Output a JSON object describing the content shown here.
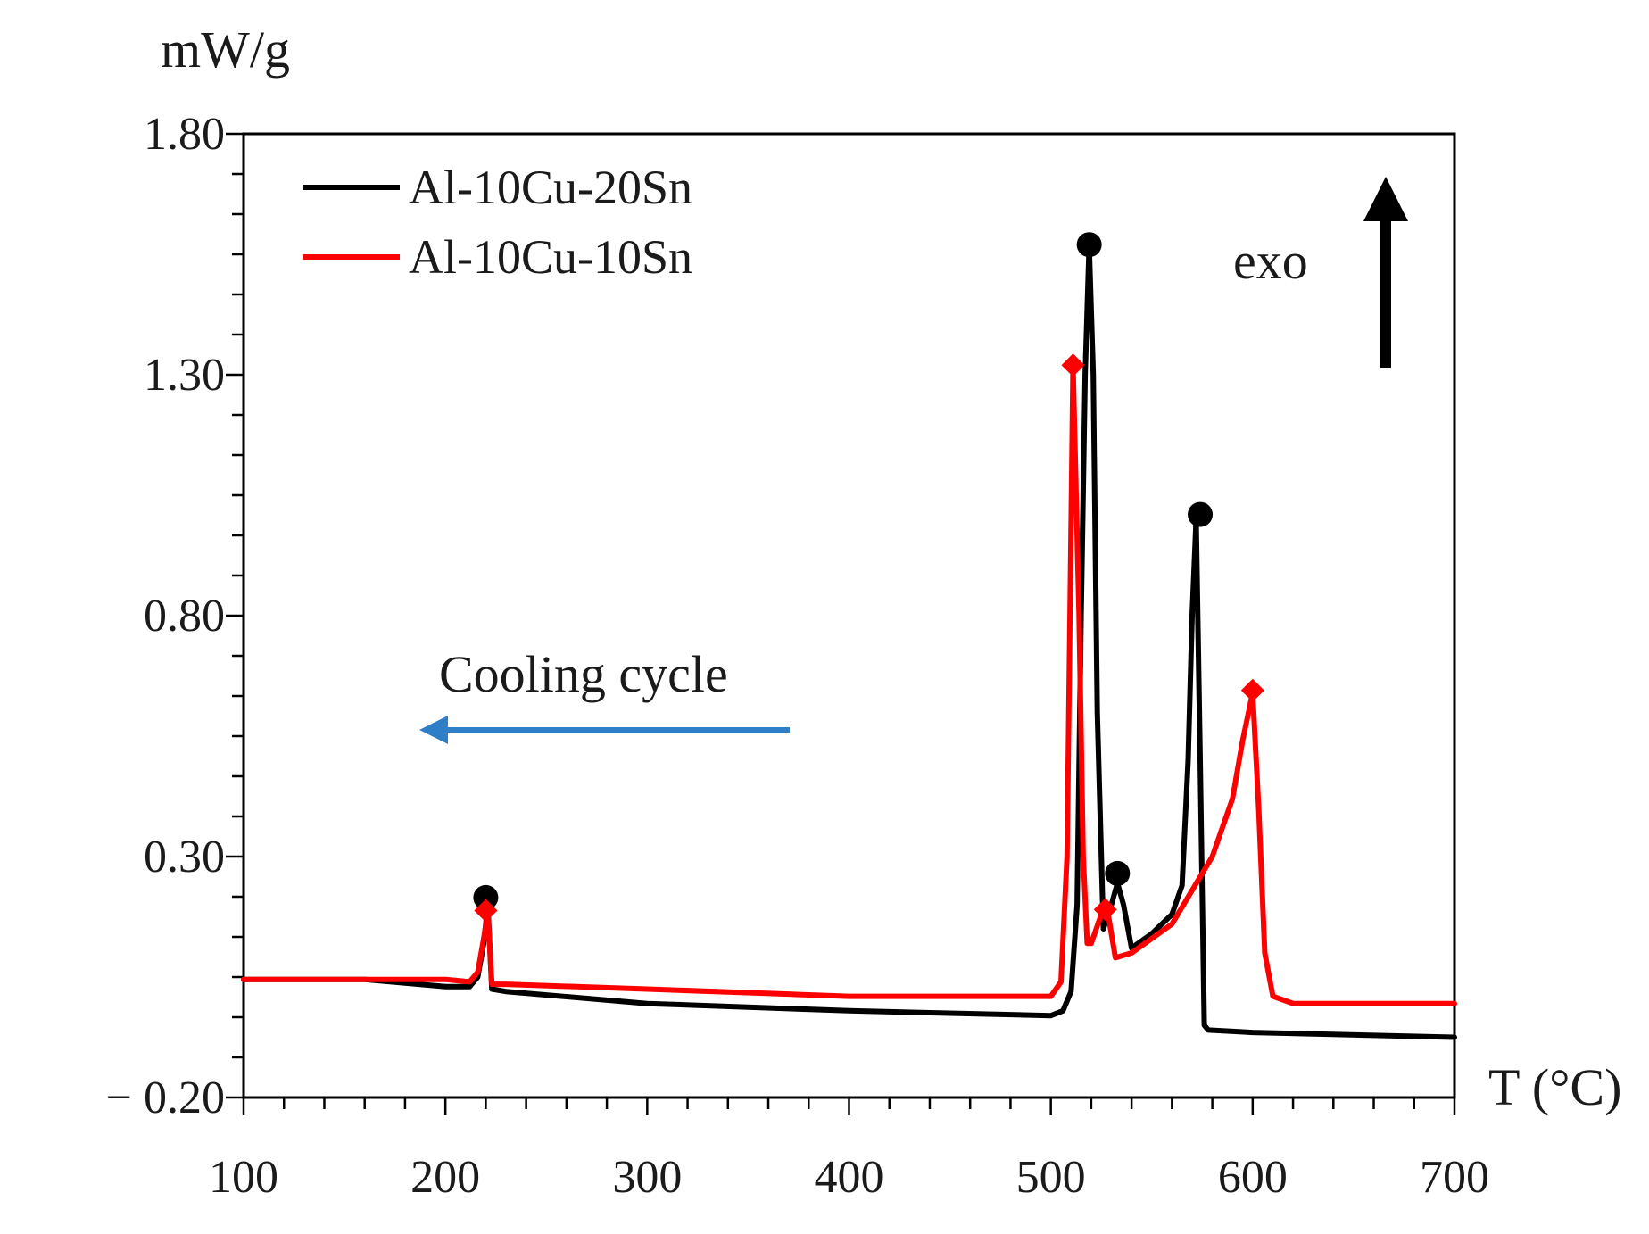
{
  "chart_data": {
    "type": "line",
    "title": "",
    "xlabel": "T (°C)",
    "ylabel": "mW/g",
    "xlim": [
      100,
      700
    ],
    "ylim": [
      -0.2,
      1.8
    ],
    "x_ticks": [
      100,
      200,
      300,
      400,
      500,
      600,
      700
    ],
    "x_tick_labels": [
      "100",
      "200",
      "300",
      "400",
      "500",
      "600",
      "700"
    ],
    "y_ticks": [
      -0.2,
      0.3,
      0.8,
      1.3,
      1.8
    ],
    "y_tick_labels": [
      "− 0.20",
      "0.30",
      "0.80",
      "1.30",
      "1.80"
    ],
    "grid": false,
    "legend_position": "top-left",
    "series": [
      {
        "name": "Al-10Cu-20Sn",
        "color": "#000000",
        "marker": "circle",
        "x": [
          100,
          160,
          200,
          212,
          216,
          219,
          221,
          223,
          230,
          300,
          400,
          500,
          506,
          510,
          513,
          515,
          517,
          519,
          521,
          523,
          526,
          530,
          533,
          536,
          540,
          550,
          560,
          565,
          568,
          570,
          572,
          574,
          576,
          578,
          600,
          700
        ],
        "y": [
          0.045,
          0.045,
          0.03,
          0.03,
          0.05,
          0.12,
          0.2,
          0.025,
          0.02,
          -0.005,
          -0.02,
          -0.03,
          -0.02,
          0.02,
          0.2,
          0.8,
          1.3,
          1.57,
          1.3,
          0.6,
          0.15,
          0.2,
          0.245,
          0.2,
          0.11,
          0.14,
          0.18,
          0.24,
          0.5,
          0.8,
          1.0,
          0.5,
          -0.05,
          -0.06,
          -0.065,
          -0.075
        ],
        "markers": [
          {
            "x": 220,
            "y": 0.215
          },
          {
            "x": 519,
            "y": 1.57
          },
          {
            "x": 533,
            "y": 0.265
          },
          {
            "x": 574,
            "y": 1.01
          }
        ]
      },
      {
        "name": "Al-10Cu-10Sn",
        "color": "#ff0000",
        "marker": "diamond",
        "x": [
          100,
          160,
          200,
          212,
          216,
          219,
          221,
          223,
          230,
          300,
          400,
          500,
          505,
          508,
          511,
          514,
          516,
          518,
          520,
          525,
          528,
          532,
          540,
          560,
          580,
          590,
          595,
          600,
          603,
          606,
          610,
          620,
          700
        ],
        "y": [
          0.045,
          0.045,
          0.045,
          0.04,
          0.06,
          0.13,
          0.185,
          0.035,
          0.035,
          0.025,
          0.01,
          0.01,
          0.04,
          0.3,
          1.32,
          0.8,
          0.3,
          0.12,
          0.12,
          0.18,
          0.19,
          0.09,
          0.1,
          0.16,
          0.3,
          0.42,
          0.54,
          0.64,
          0.4,
          0.1,
          0.01,
          -0.005,
          -0.005
        ],
        "markers": [
          {
            "x": 220,
            "y": 0.188
          },
          {
            "x": 511,
            "y": 1.32
          },
          {
            "x": 527,
            "y": 0.19
          },
          {
            "x": 600,
            "y": 0.645
          }
        ]
      }
    ],
    "annotations": [
      {
        "text": "exo",
        "arrow": "up",
        "color": "#000000",
        "location": "top-right"
      },
      {
        "text": "Cooling cycle",
        "arrow": "left",
        "color": "#2f7fc8",
        "location": "middle-left"
      }
    ]
  }
}
